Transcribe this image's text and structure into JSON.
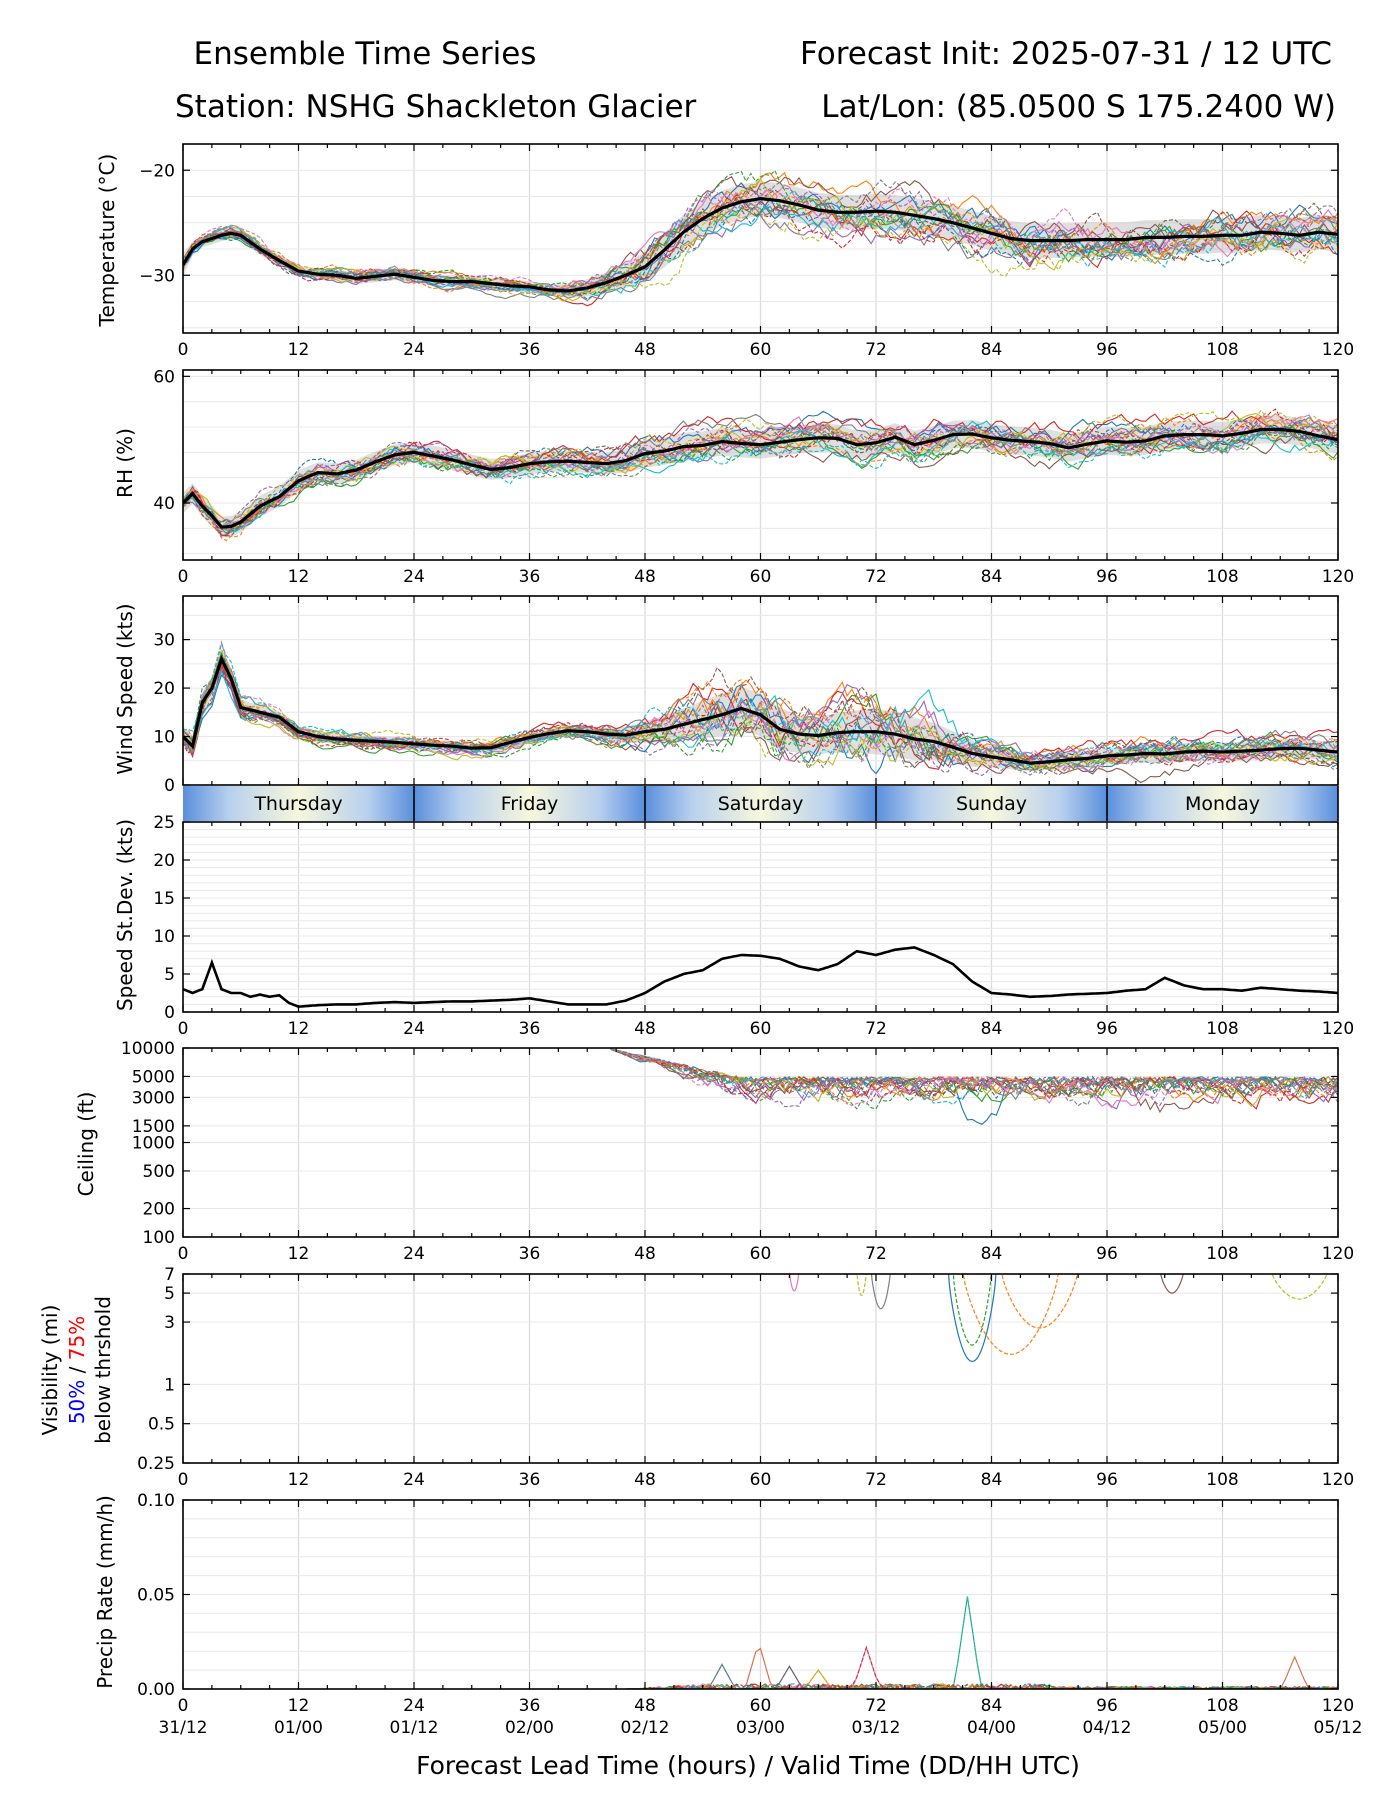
{
  "header": {
    "title_left": "Ensemble Time Series",
    "title_right": "Forecast Init: 2025-07-31 / 12 UTC",
    "station": "Station: NSHG Shackleton Glacier",
    "latlon": "Lat/Lon: (85.0500 S 175.2400 W)"
  },
  "x_axis": {
    "label": "Forecast Lead Time (hours) / Valid Time (DD/HH UTC)",
    "lead_ticks": [
      "0",
      "12",
      "24",
      "36",
      "48",
      "60",
      "72",
      "84",
      "96",
      "108",
      "120"
    ],
    "valid_ticks": [
      "31/12",
      "01/00",
      "01/12",
      "02/00",
      "02/12",
      "03/00",
      "03/12",
      "04/00",
      "04/12",
      "05/00",
      "05/12"
    ],
    "range": [
      0,
      120
    ]
  },
  "days": [
    "Thursday",
    "Friday",
    "Saturday",
    "Sunday",
    "Monday"
  ],
  "colors": {
    "members": [
      "#1f77b4",
      "#ff7f0e",
      "#2ca02c",
      "#d62728",
      "#9467bd",
      "#8c564b",
      "#e377c2",
      "#7f7f7f",
      "#bcbd22",
      "#17becf"
    ],
    "mean": "#000000",
    "spread": "#b8b8b8",
    "day_band_edge": "#5a8fdc",
    "day_band_mid": "#f6f7dc",
    "vis_50": "#0000ff",
    "vis_75": "#ff0000"
  },
  "panels": {
    "temperature": {
      "ylabel": "Temperature (°C)",
      "ticks": [
        "−20",
        "−30"
      ]
    },
    "rh": {
      "ylabel": "RH (%)",
      "ticks": [
        "60",
        "40"
      ]
    },
    "wind": {
      "ylabel": "Wind Speed (kts)",
      "ticks": [
        "0",
        "10",
        "20",
        "30"
      ]
    },
    "stdev": {
      "ylabel": "Speed St.Dev. (kts)",
      "ticks": [
        "0",
        "5",
        "10",
        "15",
        "20",
        "25"
      ]
    },
    "ceiling": {
      "ylabel": "Ceiling (ft)",
      "ticks": [
        "10000",
        "5000",
        "3000",
        "1500",
        "1000",
        "500",
        "200",
        "100"
      ]
    },
    "visibility": {
      "ylabel_1": "Visibility (mi)",
      "ylabel_50": "50%",
      "ylabel_sep": " / ",
      "ylabel_75": "75%",
      "ylabel_2": "below thrshold",
      "ticks": [
        "7",
        "5",
        "3",
        "1",
        "0.5",
        "0.25"
      ]
    },
    "precip": {
      "ylabel": "Precip Rate (mm/h)",
      "ticks": [
        "0.10",
        "0.05",
        "0.00"
      ]
    }
  },
  "chart_data": [
    {
      "type": "line",
      "name": "temperature",
      "xlim": [
        0,
        120
      ],
      "ylim": [
        -35.5,
        -17.5
      ],
      "x": [
        0,
        1,
        2,
        3,
        4,
        5,
        6,
        8,
        10,
        12,
        14,
        16,
        18,
        20,
        22,
        24,
        26,
        28,
        30,
        32,
        34,
        36,
        38,
        40,
        42,
        44,
        46,
        48,
        50,
        52,
        54,
        56,
        58,
        60,
        62,
        64,
        66,
        68,
        70,
        72,
        74,
        76,
        78,
        80,
        82,
        84,
        86,
        88,
        90,
        92,
        94,
        96,
        98,
        100,
        102,
        104,
        106,
        108,
        110,
        112,
        114,
        116,
        118,
        120
      ],
      "series": [
        {
          "name": "mean",
          "values": [
            -29,
            -27.5,
            -26.8,
            -26.5,
            -26.2,
            -26,
            -26.2,
            -27.5,
            -28.6,
            -29.6,
            -29.9,
            -30,
            -30.3,
            -30.1,
            -29.9,
            -30.2,
            -30.5,
            -30.6,
            -30.6,
            -30.8,
            -31,
            -31.1,
            -31.4,
            -31.5,
            -31.2,
            -30.7,
            -30,
            -29.2,
            -27.6,
            -25.9,
            -24.6,
            -23.6,
            -23,
            -22.7,
            -22.9,
            -23.3,
            -23.8,
            -24,
            -24,
            -23.9,
            -24,
            -24.3,
            -24.6,
            -25,
            -25.5,
            -26,
            -26.5,
            -26.7,
            -26.7,
            -26.7,
            -26.6,
            -26.6,
            -26.6,
            -26.4,
            -26.4,
            -26.3,
            -26.3,
            -26.2,
            -26.2,
            -25.9,
            -26,
            -26.2,
            -25.9,
            -26.1
          ]
        },
        {
          "name": "spread",
          "values": [
            2,
            1.2,
            1,
            1,
            1,
            1,
            1,
            1,
            1,
            1,
            1,
            1,
            1,
            1,
            1,
            1,
            1,
            1,
            1,
            1,
            1,
            1,
            1,
            1.2,
            1.5,
            1.8,
            2.2,
            2.6,
            3,
            3,
            3,
            3,
            3,
            3,
            3,
            3,
            3,
            3,
            3,
            3,
            3,
            3,
            3,
            3,
            3,
            3,
            3,
            3,
            3,
            3,
            3,
            3,
            3,
            3,
            3,
            3,
            3,
            3,
            3,
            3,
            3,
            3,
            3,
            3
          ]
        }
      ]
    },
    {
      "type": "line",
      "name": "rh",
      "xlim": [
        0,
        120
      ],
      "ylim": [
        31,
        61
      ],
      "x": [
        0,
        1,
        2,
        3,
        4,
        5,
        6,
        8,
        10,
        12,
        14,
        16,
        18,
        20,
        22,
        24,
        26,
        28,
        30,
        32,
        34,
        36,
        38,
        40,
        42,
        44,
        46,
        48,
        50,
        52,
        54,
        56,
        58,
        60,
        62,
        64,
        66,
        68,
        70,
        72,
        74,
        76,
        78,
        80,
        82,
        84,
        86,
        88,
        90,
        92,
        94,
        96,
        98,
        100,
        102,
        104,
        106,
        108,
        110,
        112,
        114,
        116,
        118,
        120
      ],
      "series": [
        {
          "name": "mean",
          "values": [
            40,
            41.5,
            39.5,
            38,
            36.2,
            36.3,
            37,
            39.5,
            41,
            43.5,
            44.8,
            44.6,
            45.2,
            46.5,
            47.6,
            48,
            47.4,
            46.8,
            46,
            45.3,
            45.6,
            46.2,
            46.5,
            46.6,
            46.4,
            46.2,
            46.7,
            47.8,
            48.2,
            48.9,
            49.1,
            49.7,
            49.4,
            49.2,
            49.6,
            50,
            50.3,
            50.2,
            49.2,
            49.5,
            50.4,
            49.2,
            49.9,
            50.8,
            50.9,
            50.3,
            49.9,
            49.7,
            49.4,
            48.7,
            49.3,
            49.8,
            49.6,
            49.8,
            50.6,
            50.8,
            50.8,
            50.6,
            51,
            51.6,
            51.6,
            51.3,
            50.6,
            50
          ]
        },
        {
          "name": "spread",
          "values": [
            3,
            3,
            3,
            3,
            3,
            3,
            3,
            3,
            3,
            3,
            3,
            3,
            3,
            3,
            3,
            3,
            3,
            3,
            3,
            3,
            3,
            3,
            3,
            3,
            3,
            3,
            3.5,
            4,
            4,
            4,
            4,
            4,
            4,
            4,
            4,
            4,
            4,
            4,
            4,
            4,
            4,
            4,
            4,
            4,
            4,
            4,
            4,
            4,
            4,
            4,
            4,
            4,
            4,
            4,
            4,
            4,
            4,
            4,
            4,
            4,
            4,
            4,
            4,
            4
          ]
        }
      ]
    },
    {
      "type": "line",
      "name": "wind",
      "xlim": [
        0,
        120
      ],
      "ylim": [
        0,
        39
      ],
      "x": [
        0,
        1,
        2,
        3,
        4,
        5,
        6,
        8,
        10,
        12,
        14,
        16,
        18,
        20,
        22,
        24,
        26,
        28,
        30,
        32,
        34,
        36,
        38,
        40,
        42,
        44,
        46,
        48,
        50,
        52,
        54,
        56,
        58,
        60,
        62,
        64,
        66,
        68,
        70,
        72,
        74,
        76,
        78,
        80,
        82,
        84,
        86,
        88,
        90,
        92,
        94,
        96,
        98,
        100,
        102,
        104,
        106,
        108,
        110,
        112,
        114,
        116,
        118,
        120
      ],
      "series": [
        {
          "name": "mean",
          "values": [
            10,
            8,
            17,
            20,
            26,
            22,
            16,
            15,
            14,
            11,
            10,
            9.5,
            9.2,
            9,
            8.8,
            8.5,
            8.2,
            8,
            7.6,
            7.7,
            8.8,
            9.8,
            10.6,
            11.2,
            11,
            10.5,
            10.3,
            11,
            11.5,
            12.5,
            13.5,
            14.5,
            15.8,
            14.5,
            11.5,
            10.5,
            10.2,
            10.8,
            11,
            11,
            10.5,
            9.5,
            9,
            7.8,
            6.5,
            5.8,
            5.2,
            4.5,
            4.8,
            5.2,
            5.5,
            6,
            6.2,
            6.5,
            6.4,
            6.8,
            7,
            6.8,
            7,
            7.2,
            7.5,
            7.6,
            7.2,
            6.8
          ]
        },
        {
          "name": "spread",
          "values": [
            4,
            4,
            4,
            4,
            4,
            4,
            3,
            2.5,
            2,
            2,
            2,
            2,
            2,
            2,
            2,
            2,
            2,
            2,
            2,
            2,
            2,
            2,
            2,
            2,
            2,
            2.5,
            3,
            4,
            5,
            6,
            7,
            8,
            8,
            8,
            8,
            7,
            7,
            7.5,
            8,
            8.5,
            8.5,
            8,
            7,
            6,
            5,
            4,
            3.5,
            3,
            3,
            3,
            3,
            3,
            3,
            3.5,
            3.5,
            3.5,
            3.5,
            3.5,
            3.5,
            3.5,
            3.5,
            3.5,
            3.5,
            3.5
          ]
        }
      ]
    },
    {
      "type": "line",
      "name": "stdev",
      "xlim": [
        0,
        120
      ],
      "ylim": [
        0,
        25
      ],
      "x": [
        0,
        1,
        2,
        3,
        4,
        5,
        6,
        7,
        8,
        9,
        10,
        11,
        12,
        14,
        16,
        18,
        20,
        22,
        24,
        26,
        28,
        30,
        32,
        34,
        36,
        38,
        40,
        42,
        44,
        46,
        48,
        50,
        52,
        54,
        56,
        58,
        60,
        62,
        64,
        66,
        68,
        70,
        72,
        74,
        76,
        78,
        80,
        82,
        84,
        86,
        88,
        90,
        92,
        94,
        96,
        98,
        100,
        102,
        104,
        106,
        108,
        110,
        112,
        114,
        116,
        118,
        120
      ],
      "values": [
        3,
        2.5,
        3,
        6.5,
        3,
        2.5,
        2.5,
        2,
        2.3,
        2,
        2.2,
        1.2,
        0.7,
        0.9,
        1,
        1,
        1.2,
        1.3,
        1.2,
        1.3,
        1.4,
        1.4,
        1.5,
        1.6,
        1.8,
        1.4,
        1,
        1,
        1,
        1.5,
        2.5,
        4,
        5,
        5.5,
        7,
        7.5,
        7.4,
        7,
        6,
        5.5,
        6.3,
        8,
        7.5,
        8.2,
        8.5,
        7.5,
        6.3,
        4,
        2.5,
        2.3,
        2,
        2.1,
        2.3,
        2.4,
        2.5,
        2.8,
        3,
        4.5,
        3.5,
        3,
        3,
        2.8,
        3.2,
        3,
        2.8,
        2.7,
        2.5
      ]
    },
    {
      "type": "line",
      "name": "ceiling",
      "xlim": [
        0,
        120
      ],
      "ylim": [
        100,
        10000
      ],
      "yscale": "log"
    },
    {
      "type": "line",
      "name": "visibility",
      "xlim": [
        0,
        120
      ],
      "ylim": [
        0.25,
        7
      ],
      "yscale": "log"
    },
    {
      "type": "line",
      "name": "precip",
      "xlim": [
        0,
        120
      ],
      "ylim": [
        0,
        0.1
      ]
    }
  ]
}
